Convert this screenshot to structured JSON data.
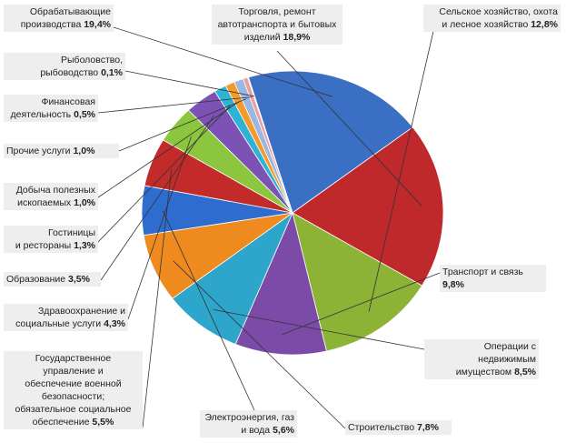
{
  "chart_data": {
    "type": "pie",
    "slices": [
      {
        "name": "Обрабатывающие производства",
        "value": 19.4,
        "label": "19,4%",
        "color": "#3b6fc4"
      },
      {
        "name": "Торговля, ремонт автотранспорта и бытовых изделий",
        "value": 18.9,
        "label": "18,9%",
        "color": "#c0292b"
      },
      {
        "name": "Сельское хозяйство, охота и лесное хозяйство",
        "value": 12.8,
        "label": "12,8%",
        "color": "#8cb336"
      },
      {
        "name": "Транспорт и  связь",
        "value": 9.8,
        "label": "9,8%",
        "color": "#7b4ba7"
      },
      {
        "name": "Операции с недвижимым имуществом",
        "value": 8.5,
        "label": "8,5%",
        "color": "#2ea5cb"
      },
      {
        "name": "Строительство",
        "value": 7.8,
        "label": "7,8%",
        "color": "#ef8a1f"
      },
      {
        "name": "Электроэнергия, газ и вода",
        "value": 5.6,
        "label": "5,6%",
        "color": "#2f6cd0"
      },
      {
        "name": "Государственное управление и обеспечение военной безопасности; обязательное социальное обеспечение",
        "value": 5.5,
        "label": "5,5%",
        "color": "#c32a2a"
      },
      {
        "name": "Здравоохранение и социальные услуги",
        "value": 4.3,
        "label": "4,3%",
        "color": "#8cc63e"
      },
      {
        "name": "Образование",
        "value": 3.5,
        "label": "3,5%",
        "color": "#7c52b5"
      },
      {
        "name": "Гостиницы и рестораны",
        "value": 1.3,
        "label": "1,3%",
        "color": "#2eb3d6"
      },
      {
        "name": "Добыча полезных ископаемых",
        "value": 1.0,
        "label": "1,0%",
        "color": "#f39a2a"
      },
      {
        "name": "Прочие услуги",
        "value": 1.0,
        "label": "1,0%",
        "color": "#9bb7e0"
      },
      {
        "name": "Финансовая деятельность",
        "value": 0.5,
        "label": "0,5%",
        "color": "#e6a0a0"
      },
      {
        "name": "Рыболовство, рыбоводство",
        "value": 0.1,
        "label": "0,1%",
        "color": "#c8dca0"
      }
    ]
  },
  "labels": [
    {
      "lines": [
        "Обрабатывающие",
        "производства "
      ],
      "pct": "19,4%"
    },
    {
      "lines": [
        "Торговля, ремонт",
        "автотранспорта и бытовых",
        "изделий "
      ],
      "pct": "18,9%"
    },
    {
      "lines": [
        "Сельское хозяйство, охота",
        "и лесное хозяйство "
      ],
      "pct": "12,8%"
    },
    {
      "lines": [
        "Транспорт и  связь "
      ],
      "pct": "9,8%"
    },
    {
      "lines": [
        "Операции с недвижимым",
        "имуществом "
      ],
      "pct": "8,5%"
    },
    {
      "lines": [
        "Строительство "
      ],
      "pct": "7,8%"
    },
    {
      "lines": [
        "Электроэнергия, газ",
        "и вода "
      ],
      "pct": "5,6%"
    },
    {
      "lines": [
        "Государственное",
        "управление и",
        "обеспечение военной",
        "безопасности;",
        "обязательное социальное",
        "обеспечение "
      ],
      "pct": "5,5%"
    },
    {
      "lines": [
        "Здравоохранение  и",
        "социальные услуги "
      ],
      "pct": "4,3%"
    },
    {
      "lines": [
        "Образование "
      ],
      "pct": "3,5%"
    },
    {
      "lines": [
        "Гостиницы",
        "и рестораны "
      ],
      "pct": "1,3%"
    },
    {
      "lines": [
        "Добыча полезных",
        "ископаемых "
      ],
      "pct": "1,0%"
    },
    {
      "lines": [
        "Прочие услуги "
      ],
      "pct": "1,0%"
    },
    {
      "lines": [
        "Финансовая",
        "деятельность "
      ],
      "pct": "0,5%"
    },
    {
      "lines": [
        "Рыболовство,",
        "рыбоводство "
      ],
      "pct": "0,1%"
    }
  ]
}
